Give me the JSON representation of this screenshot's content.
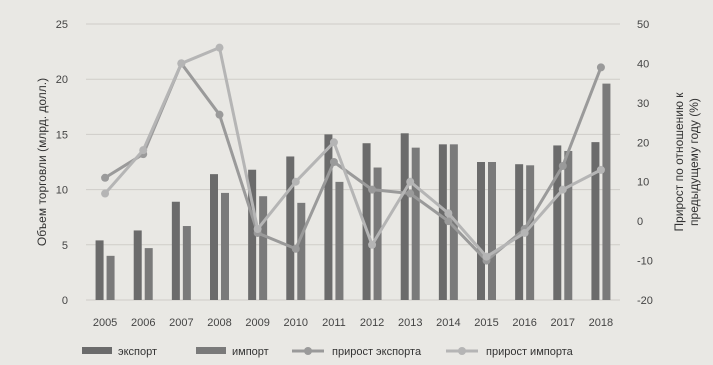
{
  "chart_data": {
    "type": "bar",
    "categories": [
      "2005",
      "2006",
      "2007",
      "2008",
      "2009",
      "2010",
      "2011",
      "2012",
      "2013",
      "2014",
      "2015",
      "2016",
      "2017",
      "2018"
    ],
    "series": [
      {
        "name": "экспорт",
        "kind": "bar",
        "axis": "left",
        "color": "#6b6b6b",
        "values": [
          5.4,
          6.3,
          8.9,
          11.4,
          11.8,
          13.0,
          15.0,
          14.2,
          15.1,
          14.1,
          12.5,
          12.3,
          14.0,
          14.3
        ]
      },
      {
        "name": "импорт",
        "kind": "bar",
        "axis": "left",
        "color": "#7a7a7a",
        "values": [
          4.0,
          4.7,
          6.7,
          9.7,
          9.4,
          8.8,
          10.7,
          12.0,
          13.8,
          14.1,
          12.5,
          12.2,
          13.5,
          19.6
        ]
      },
      {
        "name": "прирост экспорта",
        "kind": "line",
        "axis": "right",
        "color": "#9a9a9a",
        "values": [
          11,
          17,
          40,
          27,
          -3,
          -7,
          15,
          8,
          7,
          0,
          -10,
          -2,
          14,
          39
        ]
      },
      {
        "name": "прирост импорта",
        "kind": "line",
        "axis": "right",
        "color": "#b5b5b5",
        "values": [
          7,
          18,
          40,
          44,
          -2,
          10,
          20,
          -6,
          10,
          2,
          -9,
          -3,
          8,
          13
        ]
      }
    ],
    "ylabel": "Объем торговли (млрд. долл.)",
    "y2label": "Прирост по отношению к предыдущему году (%)",
    "ylim": [
      0,
      25
    ],
    "y2lim": [
      -20,
      50
    ],
    "yticks": [
      0,
      5,
      10,
      15,
      20,
      25
    ],
    "y2ticks": [
      -20,
      -10,
      0,
      10,
      20,
      30,
      40,
      50
    ],
    "grid": true,
    "legend": "bottom"
  }
}
